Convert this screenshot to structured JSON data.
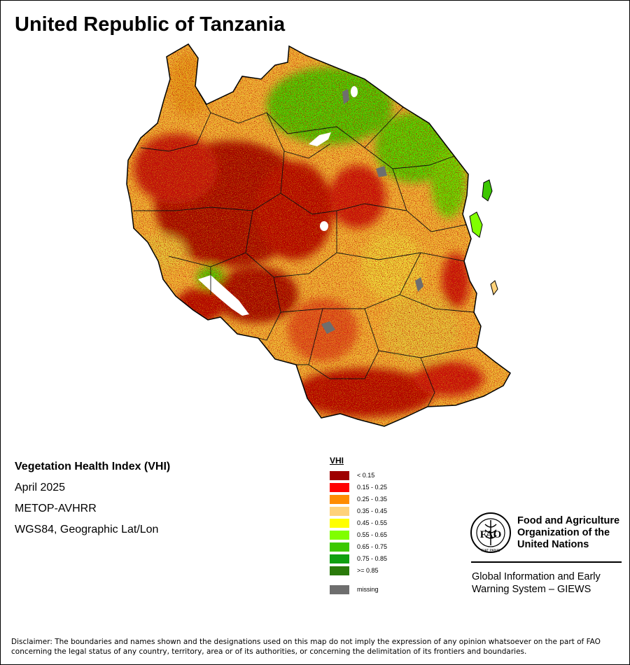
{
  "title": "United Republic of Tanzania",
  "info": {
    "index_name": "Vegetation Health Index (VHI)",
    "period": "April 2025",
    "sensor": "METOP-AVHRR",
    "projection": "WGS84, Geographic Lat/Lon"
  },
  "legend": {
    "title": "VHI",
    "classes": [
      {
        "label": "< 0.15",
        "color": "#9e0000"
      },
      {
        "label": "0.15 - 0.25",
        "color": "#ff0000"
      },
      {
        "label": "0.25 - 0.35",
        "color": "#ff8c00"
      },
      {
        "label": "0.35 - 0.45",
        "color": "#ffd27a"
      },
      {
        "label": "0.45 - 0.55",
        "color": "#ffff00"
      },
      {
        "label": "0.55 - 0.65",
        "color": "#80ff00"
      },
      {
        "label": "0.65 - 0.75",
        "color": "#3cc800"
      },
      {
        "label": "0.75 - 0.85",
        "color": "#10a010"
      },
      {
        "label": ">= 0.85",
        "color": "#2a7a0a"
      }
    ],
    "missing": {
      "label": "missing",
      "color": "#6e6e6e"
    }
  },
  "fao": {
    "logo_text": "FAO",
    "logo_motto": "FIAT PANIS",
    "name_line1": "Food and Agriculture",
    "name_line2": "Organization of the",
    "name_line3": "United Nations",
    "giews_line1": "Global Information and Early",
    "giews_line2": "Warning System – GIEWS"
  },
  "disclaimer_line1": "Disclaimer: The boundaries and names shown and the designations used on this map do not imply the expression of any opinion whatsoever on the part of FAO",
  "disclaimer_line2": "concerning the legal status of any country, territory, area or of its authorities, or concerning the delimitation of its frontiers and boundaries."
}
